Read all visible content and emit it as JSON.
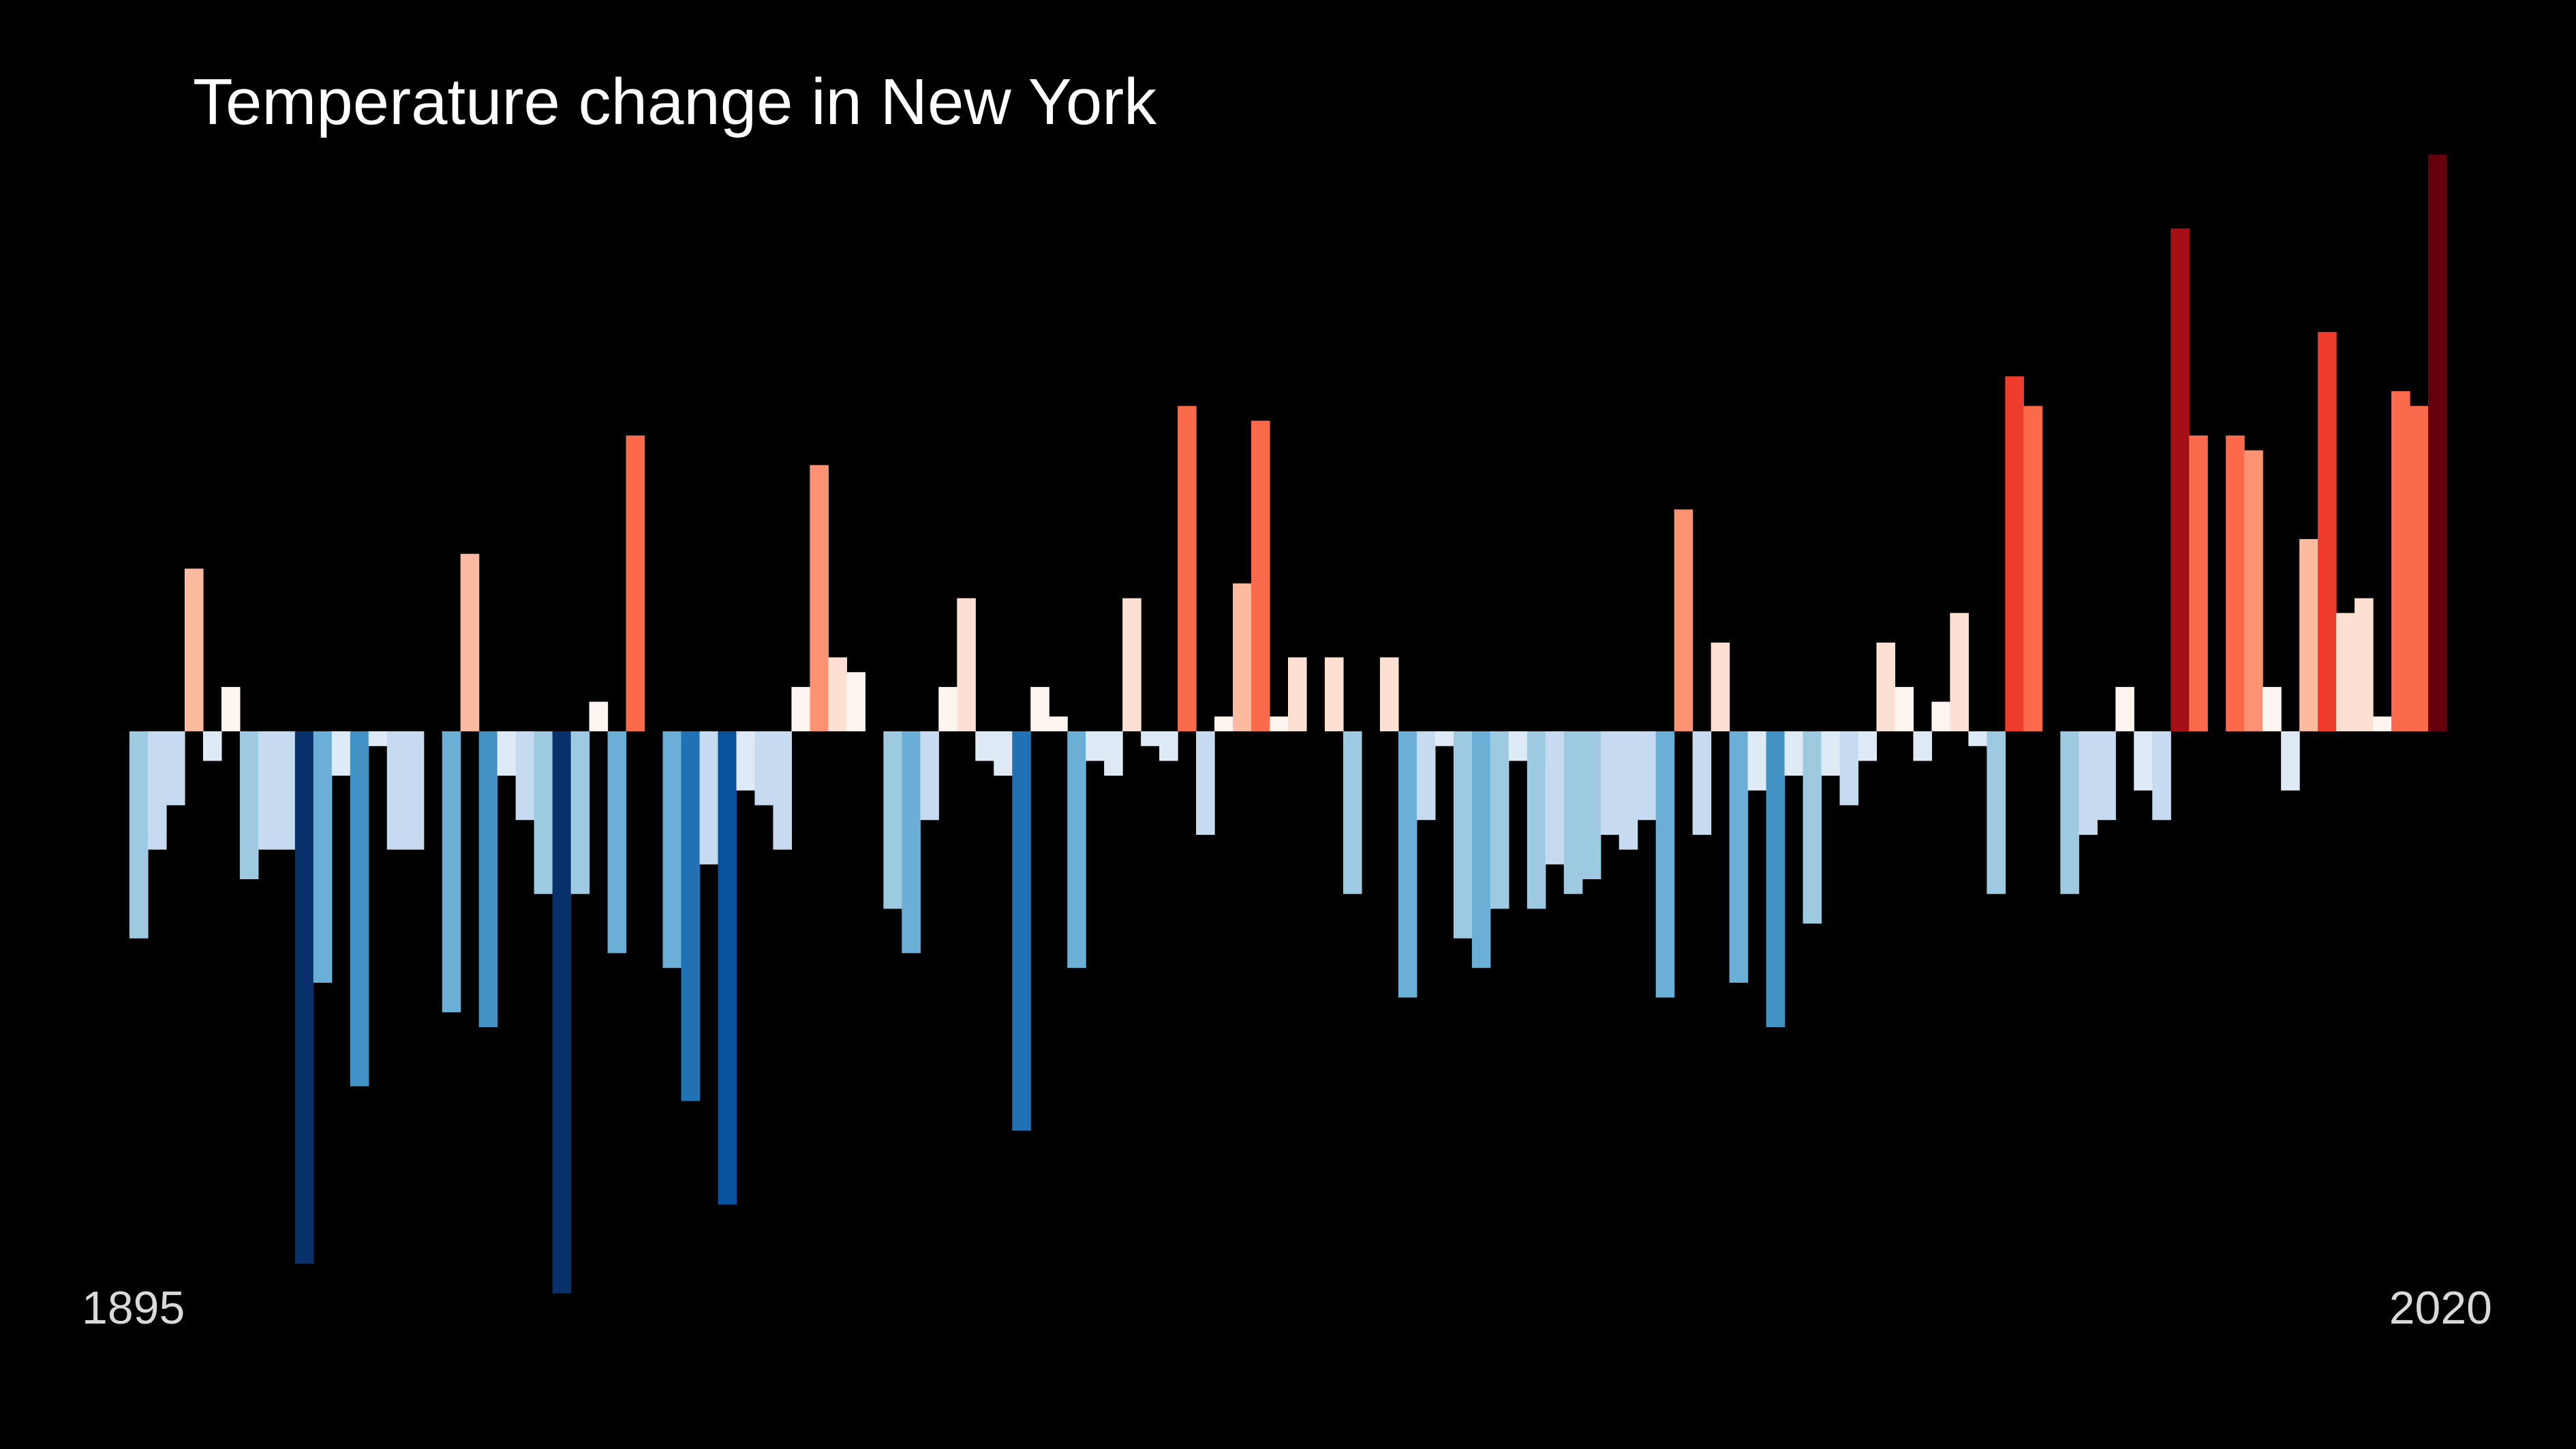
{
  "chart_data": {
    "type": "bar",
    "title": "Temperature change in New York",
    "x_start_label": "1895",
    "x_end_label": "2020",
    "x_start": 1895,
    "x_end": 2020,
    "ylim": [
      -3.8,
      3.9
    ],
    "grid": false,
    "legend": "none",
    "color_scale": [
      "#08306b",
      "#08519c",
      "#2171b5",
      "#4292c6",
      "#6baed6",
      "#9ecae1",
      "#c6dbef",
      "#deebf7",
      "#fff5f0",
      "#fee0d2",
      "#fcbba1",
      "#fc9272",
      "#fb6a4a",
      "#ef3b2c",
      "#cb181d",
      "#a50f15",
      "#67000d"
    ],
    "values": [
      -1.4,
      -0.8,
      -0.5,
      1.1,
      -0.2,
      0.3,
      -1.0,
      -0.8,
      -0.8,
      -3.6,
      -1.7,
      -0.3,
      -2.4,
      -0.1,
      -0.8,
      -0.8,
      0.0,
      -1.9,
      1.2,
      -2.0,
      -0.3,
      -0.6,
      -1.1,
      -3.8,
      -1.1,
      0.2,
      -1.5,
      2.0,
      0.0,
      -1.6,
      -2.5,
      -0.9,
      -3.2,
      -0.4,
      -0.5,
      -0.8,
      0.3,
      1.8,
      0.5,
      0.4,
      0.0,
      -1.2,
      -1.5,
      -0.6,
      0.3,
      0.9,
      -0.2,
      -0.3,
      -2.7,
      0.3,
      0.1,
      -1.6,
      -0.2,
      -0.3,
      0.9,
      -0.1,
      -0.2,
      2.2,
      -0.7,
      0.1,
      1.0,
      2.1,
      0.1,
      0.5,
      0.0,
      0.5,
      -1.1,
      0.0,
      0.5,
      -1.8,
      -0.6,
      -0.1,
      -1.4,
      -1.6,
      -1.2,
      -0.2,
      -1.2,
      -0.9,
      -1.1,
      -1.0,
      -0.7,
      -0.8,
      -0.6,
      -1.8,
      1.5,
      -0.7,
      0.6,
      -1.7,
      -0.4,
      -2.0,
      -0.3,
      -1.3,
      -0.3,
      -0.5,
      -0.2,
      0.6,
      0.3,
      -0.2,
      0.2,
      0.8,
      -0.1,
      -1.1,
      2.4,
      2.2,
      0.0,
      -1.1,
      -0.7,
      -0.6,
      0.3,
      -0.4,
      -0.6,
      3.4,
      2.0,
      0.0,
      2.0,
      1.9,
      0.3,
      -0.4,
      1.3,
      2.7,
      0.8,
      0.9,
      0.1,
      2.3,
      2.2,
      3.9
    ]
  }
}
